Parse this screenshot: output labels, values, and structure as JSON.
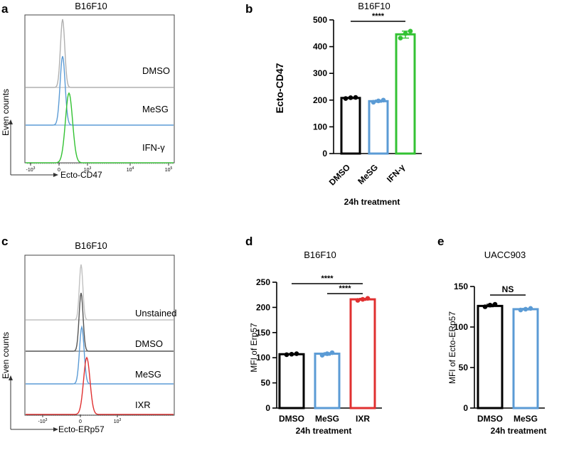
{
  "chart_data": [
    {
      "panel": "a",
      "type": "histogram",
      "title": "B16F10",
      "xlabel": "Ecto-CD47",
      "ylabel": "Even counts",
      "x_ticks": [
        "-10^3",
        "0",
        "10^3",
        "10^4",
        "10^5"
      ],
      "series": [
        {
          "name": "DMSO",
          "color": "#b0b0b0"
        },
        {
          "name": "MeSG",
          "color": "#5b9bd5"
        },
        {
          "name": "IFN-γ",
          "color": "#33c233"
        }
      ]
    },
    {
      "panel": "b",
      "type": "bar",
      "title": "B16F10",
      "xlabel": "24h treatment",
      "ylabel": "Ecto-CD47",
      "categories": [
        "DMSO",
        "MeSG",
        "IFN-γ"
      ],
      "values": [
        208,
        196,
        446
      ],
      "points": [
        [
          206,
          209,
          210
        ],
        [
          192,
          197,
          200
        ],
        [
          432,
          449,
          458
        ]
      ],
      "colors": [
        "#000000",
        "#5b9bd5",
        "#33c233"
      ],
      "ylim": [
        0,
        500
      ],
      "yticks": [
        0,
        100,
        200,
        300,
        400,
        500
      ],
      "significance": [
        {
          "from": 0,
          "to": 2,
          "label": "****"
        }
      ]
    },
    {
      "panel": "c",
      "type": "histogram",
      "title": "B16F10",
      "xlabel": "Ecto-ERp57",
      "ylabel": "Even counts",
      "x_ticks": [
        "-10^3",
        "0",
        "10^3"
      ],
      "series": [
        {
          "name": "Unstained",
          "color": "#c0c0c0"
        },
        {
          "name": "DMSO",
          "color": "#555555"
        },
        {
          "name": "MeSG",
          "color": "#5b9bd5"
        },
        {
          "name": "IXR",
          "color": "#e03030"
        }
      ]
    },
    {
      "panel": "d",
      "type": "bar",
      "title": "B16F10",
      "xlabel": "24h treatment",
      "ylabel": "MFI of Erp57",
      "categories": [
        "DMSO",
        "MeSG",
        "IXR"
      ],
      "values": [
        107,
        108,
        216
      ],
      "points": [
        [
          106,
          107,
          108
        ],
        [
          105,
          108,
          110
        ],
        [
          214,
          216,
          218
        ]
      ],
      "colors": [
        "#000000",
        "#5b9bd5",
        "#e03030"
      ],
      "ylim": [
        0,
        250
      ],
      "yticks": [
        0,
        50,
        100,
        150,
        200,
        250
      ],
      "significance": [
        {
          "from": 0,
          "to": 2,
          "label": "****"
        },
        {
          "from": 1,
          "to": 2,
          "label": "****"
        }
      ]
    },
    {
      "panel": "e",
      "type": "bar",
      "title": "UACC903",
      "xlabel": "24h treatment",
      "ylabel": "MFI of Ecto-ERp57",
      "categories": [
        "DMSO",
        "MeSG"
      ],
      "values": [
        126,
        122
      ],
      "points": [
        [
          125,
          127,
          128
        ],
        [
          121,
          122,
          123
        ]
      ],
      "colors": [
        "#000000",
        "#5b9bd5"
      ],
      "ylim": [
        0,
        150
      ],
      "yticks": [
        0,
        50,
        100,
        150
      ],
      "significance": [
        {
          "from": 0,
          "to": 1,
          "label": "NS"
        }
      ]
    }
  ]
}
